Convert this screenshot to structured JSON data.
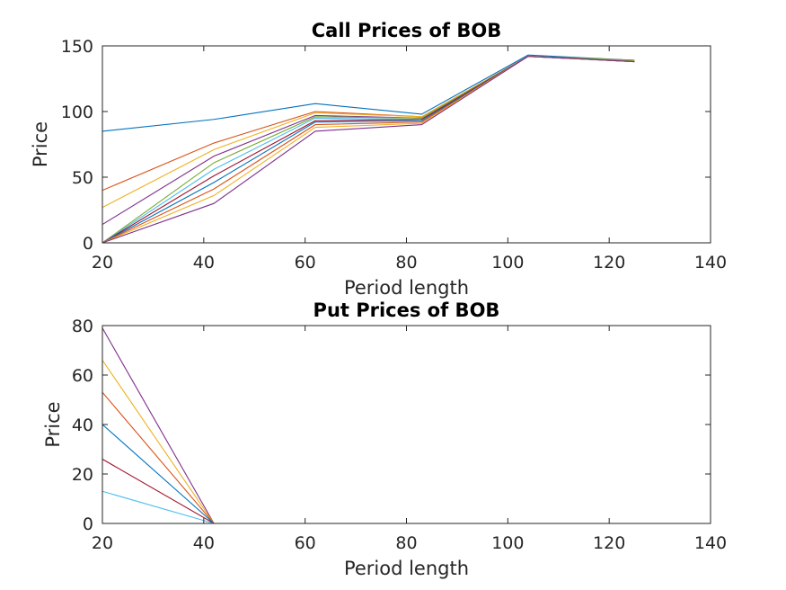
{
  "chart_data": [
    {
      "type": "line",
      "title": "Call Prices of BOB",
      "xlabel": "Period length",
      "ylabel": "Price",
      "xlim": [
        20,
        140
      ],
      "ylim": [
        0,
        150
      ],
      "xticks": [
        20,
        40,
        60,
        80,
        100,
        120,
        140
      ],
      "yticks": [
        0,
        50,
        100,
        150
      ],
      "grid": false,
      "x": [
        20,
        42,
        62,
        83,
        104,
        125
      ],
      "series": [
        {
          "color": "#0072BD",
          "values": [
            85,
            94,
            106,
            98,
            143,
            139
          ]
        },
        {
          "color": "#D95319",
          "values": [
            40,
            76,
            100,
            96,
            142,
            139
          ]
        },
        {
          "color": "#EDB120",
          "values": [
            27,
            71,
            99,
            96,
            142,
            139
          ]
        },
        {
          "color": "#7E2F8E",
          "values": [
            14,
            66,
            97,
            95,
            142,
            139
          ]
        },
        {
          "color": "#77AC30",
          "values": [
            0,
            61,
            96,
            95,
            142,
            139
          ]
        },
        {
          "color": "#4DBEEE",
          "values": [
            0,
            56,
            95,
            94,
            142,
            138
          ]
        },
        {
          "color": "#A2142F",
          "values": [
            0,
            51,
            93,
            94,
            142,
            138
          ]
        },
        {
          "color": "#0072BD",
          "values": [
            0,
            46,
            92,
            93,
            142,
            138
          ]
        },
        {
          "color": "#D95319",
          "values": [
            0,
            41,
            90,
            92,
            142,
            138
          ]
        },
        {
          "color": "#EDB120",
          "values": [
            0,
            36,
            88,
            91,
            142,
            138
          ]
        },
        {
          "color": "#7E2F8E",
          "values": [
            0,
            30,
            85,
            90,
            142,
            138
          ]
        }
      ]
    },
    {
      "type": "line",
      "title": "Put Prices of BOB",
      "xlabel": "Period length",
      "ylabel": "Price",
      "xlim": [
        20,
        140
      ],
      "ylim": [
        0,
        80
      ],
      "xticks": [
        20,
        40,
        60,
        80,
        100,
        120,
        140
      ],
      "yticks": [
        0,
        20,
        40,
        60,
        80
      ],
      "grid": false,
      "x": [
        20,
        42,
        62,
        83,
        104,
        125
      ],
      "series": [
        {
          "color": "#7E2F8E",
          "values": [
            79,
            0,
            0,
            0,
            0,
            0
          ]
        },
        {
          "color": "#EDB120",
          "values": [
            66,
            0,
            0,
            0,
            0,
            0
          ]
        },
        {
          "color": "#D95319",
          "values": [
            53,
            0,
            0,
            0,
            0,
            0
          ]
        },
        {
          "color": "#0072BD",
          "values": [
            40,
            0,
            0,
            0,
            0,
            0
          ]
        },
        {
          "color": "#A2142F",
          "values": [
            26,
            0,
            0,
            0,
            0,
            0
          ]
        },
        {
          "color": "#4DBEEE",
          "values": [
            13,
            0,
            0,
            0,
            0,
            0
          ]
        },
        {
          "color": "#77AC30",
          "values": [
            0,
            0,
            0,
            0,
            0,
            0
          ]
        }
      ]
    }
  ]
}
